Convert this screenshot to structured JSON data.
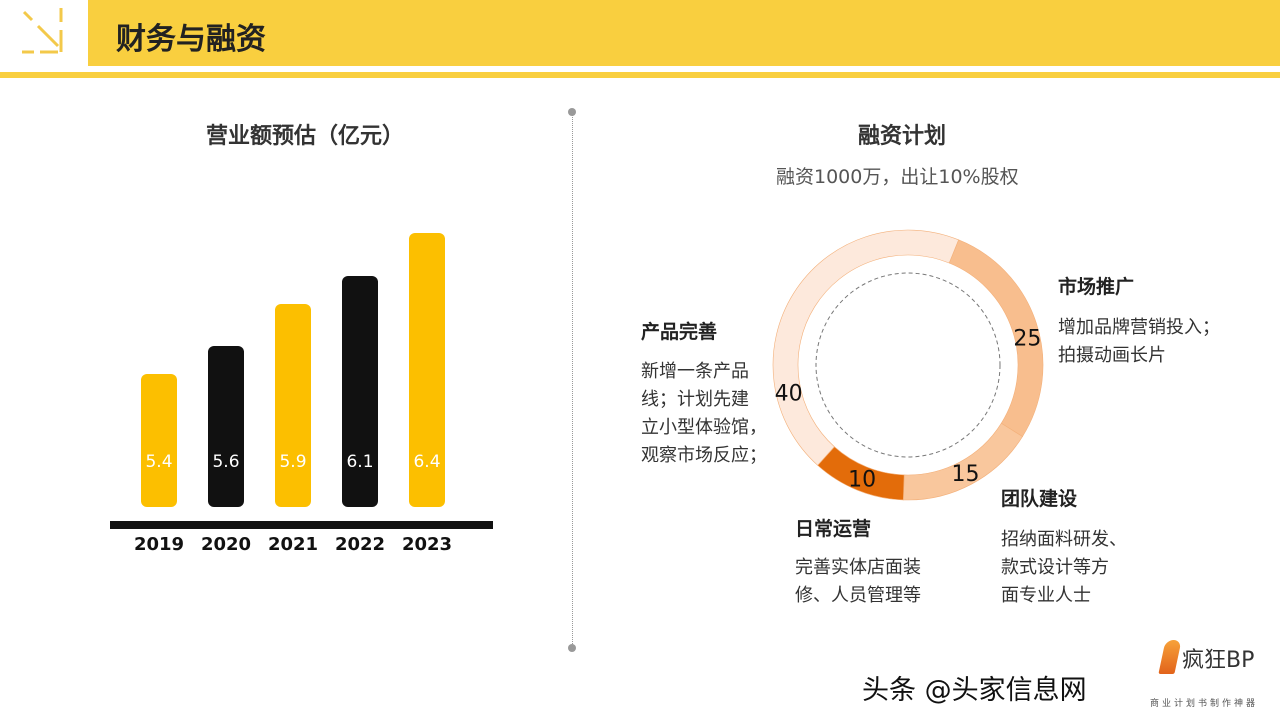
{
  "header": {
    "title": "财务与融资",
    "accent": "#f9cf3f"
  },
  "chart_data": [
    {
      "type": "bar",
      "title": "营业额预估（亿元）",
      "categories": [
        "2019",
        "2020",
        "2021",
        "2022",
        "2023"
      ],
      "values": [
        5.4,
        5.6,
        5.9,
        6.1,
        6.4
      ],
      "value_labels": [
        "5.4",
        "5.6",
        "5.9",
        "6.1",
        "6.4"
      ],
      "colors": [
        "#fcbf00",
        "#111111",
        "#fcbf00",
        "#111111",
        "#fcbf00"
      ]
    },
    {
      "type": "pie",
      "title": "融资计划",
      "subtitle": "融资1000万，出让10%股权",
      "slices": [
        {
          "label": "市场推广",
          "value": 25,
          "value_label": "25",
          "color": "#f8be8e",
          "desc": [
            "增加品牌营销投入；",
            "拍摄动画长片"
          ]
        },
        {
          "label": "团队建设",
          "value": 15,
          "value_label": "15",
          "color": "#f9c79d",
          "desc": [
            "招纳面料研发、",
            "款式设计等方",
            "面专业人士"
          ]
        },
        {
          "label": "日常运营",
          "value": 10,
          "value_label": "10",
          "color": "#e36c0a",
          "desc": [
            "完善实体店面装",
            "修、人员管理等"
          ]
        },
        {
          "label": "产品完善",
          "value": 40,
          "value_label": "40",
          "color": "#fde9dc",
          "desc": [
            "新增一条产品",
            "线；计划先建",
            "立小型体验馆，",
            "观察市场反应；"
          ]
        }
      ]
    }
  ],
  "watermark": {
    "logo": "疯狂BP",
    "logo_sub": "商业计划书制作神器",
    "text": "头条 @头家信息网"
  }
}
